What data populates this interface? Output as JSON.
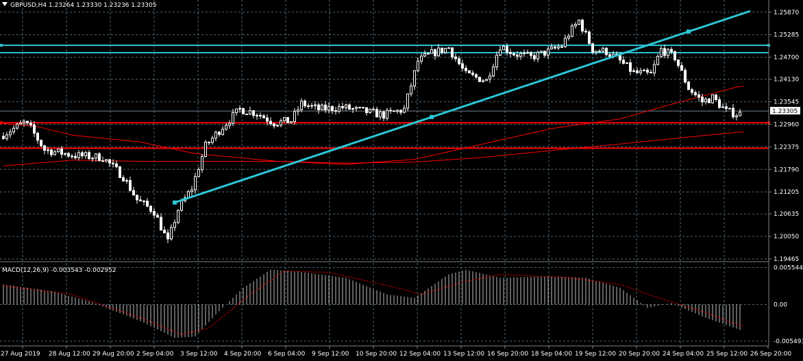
{
  "main": {
    "header": "GBPUSD,H4  1.23264 1.23330 1.23236 1.23305",
    "ylim": [
      1.1943,
      1.2592
    ],
    "y_ticks": [
      "1.25870",
      "1.25285",
      "1.24700",
      "1.24130",
      "1.23545",
      "1.22960",
      "1.22375",
      "1.21790",
      "1.21205",
      "1.20635",
      "1.20050",
      "1.19465"
    ],
    "current_price": "1.23305",
    "colors": {
      "bull": "#ffffff",
      "bear": "#ffffff",
      "ma": "#ff0000",
      "trendline": "#2cc7d6",
      "hline_cyan": "#2cc7d6",
      "hline_red": "#ff0000",
      "grid": "#4f6a78"
    }
  },
  "macd": {
    "label": "MACD(12,26,9) -0.003543 -0.002952",
    "y_ticks": [
      "0.005544",
      "0.00",
      "-0.005493"
    ],
    "ylim": [
      -0.006,
      0.0062
    ]
  },
  "x_ticks": [
    "27 Aug 2019",
    "28 Aug 12:00",
    "29 Aug 20:00",
    "2 Sep 04:00",
    "3 Sep 12:00",
    "4 Sep 20:00",
    "6 Sep 04:00",
    "9 Sep 12:00",
    "10 Sep 20:00",
    "12 Sep 04:00",
    "13 Sep 12:00",
    "16 Sep 20:00",
    "18 Sep 04:00",
    "19 Sep 12:00",
    "20 Sep 20:00",
    "24 Sep 04:00",
    "25 Sep 12:00",
    "26 Sep 20:00"
  ],
  "chart_data": {
    "type": "candlestick",
    "title": "GBPUSD,H4",
    "ohlc_last": {
      "open": 1.23264,
      "high": 1.2333,
      "low": 1.23236,
      "close": 1.23305
    },
    "anchors": [
      [
        0,
        1.2265
      ],
      [
        7,
        1.23
      ],
      [
        9,
        1.2285
      ],
      [
        13,
        1.223
      ],
      [
        22,
        1.2215
      ],
      [
        30,
        1.221
      ],
      [
        36,
        1.216
      ],
      [
        40,
        1.21
      ],
      [
        45,
        1.207
      ],
      [
        49,
        1.199
      ],
      [
        52,
        1.2075
      ],
      [
        56,
        1.213
      ],
      [
        60,
        1.224
      ],
      [
        65,
        1.229
      ],
      [
        70,
        1.2335
      ],
      [
        75,
        1.2325
      ],
      [
        80,
        1.23
      ],
      [
        85,
        1.2305
      ],
      [
        88,
        1.235
      ],
      [
        93,
        1.2335
      ],
      [
        100,
        1.234
      ],
      [
        106,
        1.233
      ],
      [
        112,
        1.232
      ],
      [
        118,
        1.2335
      ],
      [
        122,
        1.246
      ],
      [
        126,
        1.248
      ],
      [
        131,
        1.2495
      ],
      [
        136,
        1.2425
      ],
      [
        142,
        1.241
      ],
      [
        146,
        1.25
      ],
      [
        150,
        1.248
      ],
      [
        155,
        1.247
      ],
      [
        160,
        1.2485
      ],
      [
        164,
        1.25
      ],
      [
        166,
        1.253
      ],
      [
        169,
        1.2565
      ],
      [
        173,
        1.249
      ],
      [
        177,
        1.2485
      ],
      [
        181,
        1.246
      ],
      [
        185,
        1.243
      ],
      [
        190,
        1.2425
      ],
      [
        193,
        1.249
      ],
      [
        197,
        1.247
      ],
      [
        201,
        1.239
      ],
      [
        205,
        1.2355
      ],
      [
        208,
        1.2365
      ],
      [
        212,
        1.233
      ],
      [
        215,
        1.2323
      ]
    ],
    "ma_fast": [
      [
        0,
        1.2298
      ],
      [
        10,
        1.229
      ],
      [
        20,
        1.2268
      ],
      [
        40,
        1.225
      ],
      [
        56,
        1.222
      ],
      [
        80,
        1.22
      ],
      [
        100,
        1.2192
      ],
      [
        120,
        1.2205
      ],
      [
        140,
        1.2245
      ],
      [
        160,
        1.2285
      ],
      [
        180,
        1.231
      ],
      [
        195,
        1.2348
      ],
      [
        215,
        1.2395
      ]
    ],
    "ma_slow": [
      [
        0,
        1.2188
      ],
      [
        20,
        1.2203
      ],
      [
        40,
        1.22
      ],
      [
        56,
        1.22
      ],
      [
        80,
        1.22
      ],
      [
        100,
        1.2195
      ],
      [
        120,
        1.2198
      ],
      [
        140,
        1.221
      ],
      [
        160,
        1.2228
      ],
      [
        180,
        1.2245
      ],
      [
        200,
        1.2263
      ],
      [
        215,
        1.2276
      ]
    ],
    "trendline": [
      [
        50,
        1.2093
      ],
      [
        218,
        1.259
      ]
    ],
    "trend_points": [
      1.2093,
      1.2314,
      1.2532
    ],
    "hlines_cyan": [
      1.2501,
      1.2482
    ],
    "hlines_red": [
      1.23,
      1.2234
    ],
    "macd_hist_anchors": [
      [
        0,
        0.003
      ],
      [
        14,
        0.002
      ],
      [
        25,
        0.0005
      ],
      [
        40,
        -0.0025
      ],
      [
        50,
        -0.005
      ],
      [
        56,
        -0.0048
      ],
      [
        62,
        -0.0015
      ],
      [
        70,
        0.0025
      ],
      [
        78,
        0.0052
      ],
      [
        85,
        0.005
      ],
      [
        100,
        0.004
      ],
      [
        112,
        0.0015
      ],
      [
        120,
        0.001
      ],
      [
        130,
        0.0045
      ],
      [
        135,
        0.0052
      ],
      [
        145,
        0.004
      ],
      [
        160,
        0.0042
      ],
      [
        170,
        0.004
      ],
      [
        180,
        0.0025
      ],
      [
        188,
        -0.0005
      ],
      [
        195,
        0.0002
      ],
      [
        205,
        -0.002
      ],
      [
        215,
        -0.0038
      ]
    ],
    "macd_signal_anchors": [
      [
        0,
        0.0028
      ],
      [
        20,
        0.0015
      ],
      [
        40,
        -0.002
      ],
      [
        52,
        -0.0045
      ],
      [
        60,
        -0.0035
      ],
      [
        72,
        0.0015
      ],
      [
        82,
        0.005
      ],
      [
        95,
        0.0048
      ],
      [
        115,
        0.0025
      ],
      [
        122,
        0.0015
      ],
      [
        135,
        0.0035
      ],
      [
        145,
        0.0045
      ],
      [
        165,
        0.004
      ],
      [
        180,
        0.003
      ],
      [
        190,
        0.0012
      ],
      [
        205,
        -0.0012
      ],
      [
        215,
        -0.0032
      ]
    ]
  }
}
